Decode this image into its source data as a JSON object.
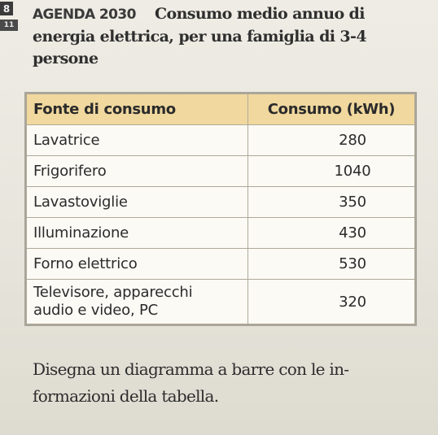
{
  "header": {
    "badge": "8",
    "goal_icon_label": "11",
    "agenda_label": "AGENDA 2030",
    "title_line1": "Consumo medio annuo di",
    "title_line2": "energia elettrica, per una famiglia di 3-4",
    "title_line3": "persone"
  },
  "table": {
    "columns": [
      "Fonte di consumo",
      "Consumo (kWh)"
    ],
    "rows": [
      {
        "source_lines": [
          "Lavatrice"
        ],
        "value": "280"
      },
      {
        "source_lines": [
          "Frigorifero"
        ],
        "value": "1040"
      },
      {
        "source_lines": [
          "Lavastoviglie"
        ],
        "value": "350"
      },
      {
        "source_lines": [
          "Illuminazione"
        ],
        "value": "430"
      },
      {
        "source_lines": [
          "Forno elettrico"
        ],
        "value": "530"
      },
      {
        "source_lines": [
          "Televisore, apparecchi",
          "audio e video, PC"
        ],
        "value": "320"
      }
    ]
  },
  "instruction": {
    "line1": "Disegna un diagramma a barre con le in-",
    "line2": "formazioni della tabella."
  },
  "icons": {
    "badge": "number-badge-icon",
    "goal": "sdg-goal-icon"
  }
}
